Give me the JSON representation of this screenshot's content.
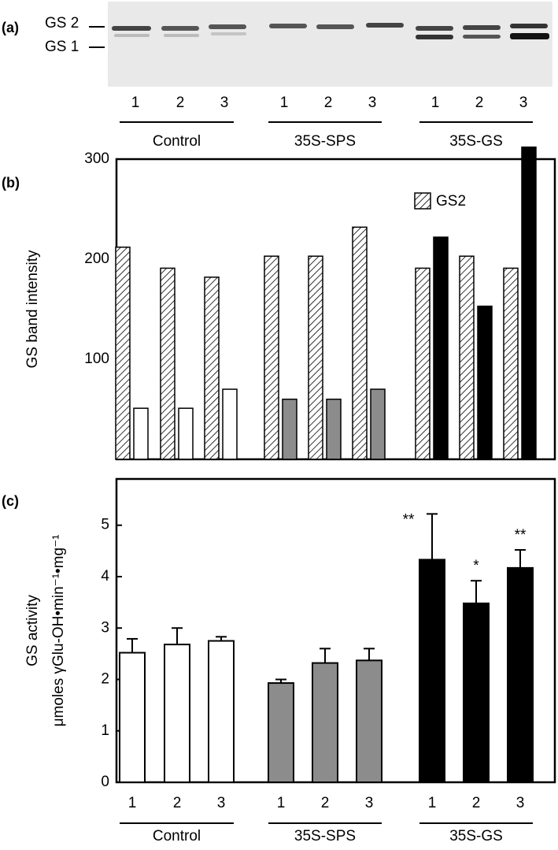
{
  "panel_a": {
    "label": "(a)",
    "bands": [
      "GS 2",
      "GS 1"
    ],
    "lanes": [
      "1",
      "2",
      "3",
      "1",
      "2",
      "3",
      "1",
      "2",
      "3"
    ],
    "groups": [
      "Control",
      "35S-SPS",
      "35S-GS"
    ]
  },
  "chart_data": [
    {
      "type": "bar",
      "panel": "(b)",
      "y_label": "GS band intensity",
      "ylim": [
        0,
        300
      ],
      "yticks": [
        100,
        200,
        300
      ],
      "legend": "top-right",
      "series": [
        {
          "name": "GS2",
          "color": "#ffffff",
          "hatch": true,
          "values": [
            212,
            191,
            182,
            203,
            203,
            232,
            191,
            203,
            191
          ]
        },
        {
          "colors": [
            "#ffffff",
            "#ffffff",
            "#ffffff",
            "#8c8c8c",
            "#8c8c8c",
            "#8c8c8c",
            "#000000",
            "#000000",
            "#000000"
          ],
          "values": [
            51,
            51,
            70,
            60,
            60,
            70,
            222,
            153,
            312
          ]
        }
      ]
    },
    {
      "type": "bar",
      "panel": "(c)",
      "y_label": [
        "GS activity",
        "μmoles γGlu-OH•min⁻¹•mg⁻¹"
      ],
      "ylim": [
        0,
        5.9
      ],
      "yticks": [
        0,
        1,
        2,
        3,
        4,
        5
      ],
      "categories": [
        "1",
        "2",
        "3",
        "1",
        "2",
        "3",
        "1",
        "2",
        "3"
      ],
      "groups": [
        "Control",
        "35S-SPS",
        "35S-GS"
      ],
      "colors": [
        "#ffffff",
        "#ffffff",
        "#ffffff",
        "#8c8c8c",
        "#8c8c8c",
        "#8c8c8c",
        "#000000",
        "#000000",
        "#000000"
      ],
      "values": [
        2.52,
        2.68,
        2.75,
        1.93,
        2.32,
        2.37,
        4.33,
        3.48,
        4.17
      ],
      "errors": [
        0.27,
        0.32,
        0.08,
        0.07,
        0.28,
        0.23,
        0.89,
        0.44,
        0.35
      ],
      "annotations": [
        null,
        null,
        null,
        null,
        null,
        null,
        "**",
        "*",
        "**"
      ]
    }
  ]
}
